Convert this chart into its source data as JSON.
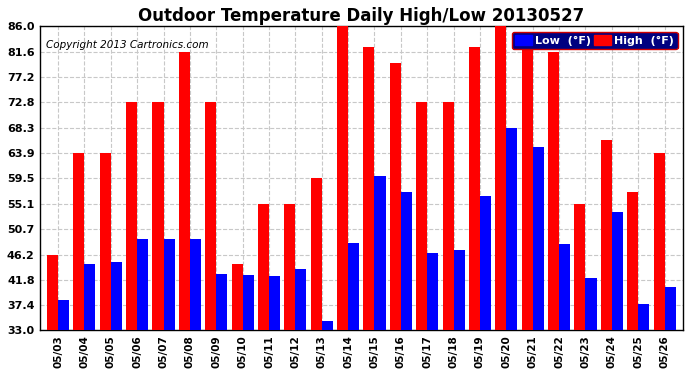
{
  "title": "Outdoor Temperature Daily High/Low 20130527",
  "copyright": "Copyright 2013 Cartronics.com",
  "legend_low": "Low  (°F)",
  "legend_high": "High  (°F)",
  "dates": [
    "05/03",
    "05/04",
    "05/05",
    "05/06",
    "05/07",
    "05/08",
    "05/09",
    "05/10",
    "05/11",
    "05/12",
    "05/13",
    "05/14",
    "05/15",
    "05/16",
    "05/17",
    "05/18",
    "05/19",
    "05/20",
    "05/21",
    "05/22",
    "05/23",
    "05/24",
    "05/25",
    "05/26"
  ],
  "highs": [
    46.2,
    63.9,
    63.9,
    72.8,
    72.8,
    81.6,
    72.8,
    44.6,
    55.1,
    55.1,
    59.5,
    86.0,
    82.4,
    79.7,
    72.8,
    72.8,
    82.4,
    86.0,
    82.4,
    81.6,
    55.1,
    66.2,
    57.2,
    63.9
  ],
  "lows": [
    38.3,
    44.6,
    45.0,
    48.9,
    48.9,
    48.9,
    42.8,
    42.6,
    42.4,
    43.7,
    34.7,
    48.2,
    60.0,
    57.2,
    46.5,
    47.0,
    56.5,
    68.3,
    65.0,
    48.0,
    42.1,
    53.6,
    37.6,
    40.6
  ],
  "low_color": "#0000ff",
  "high_color": "#ff0000",
  "bg_color": "#ffffff",
  "grid_color": "#c8c8c8",
  "yticks": [
    33.0,
    37.4,
    41.8,
    46.2,
    50.7,
    55.1,
    59.5,
    63.9,
    68.3,
    72.8,
    77.2,
    81.6,
    86.0
  ],
  "ylim": [
    33.0,
    86.0
  ],
  "title_fontsize": 12,
  "copyright_fontsize": 7.5,
  "bar_width": 0.42
}
